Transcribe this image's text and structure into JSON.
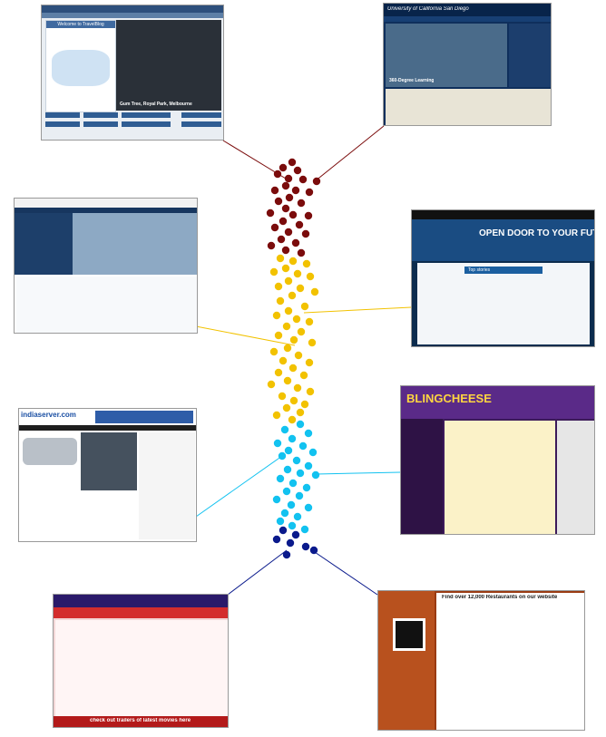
{
  "thumbnails": [
    {
      "name": "travelblog",
      "label": "Welcome to TravelBlog",
      "caption": "Gum Tree, Royal Park, Melbourne"
    },
    {
      "name": "ucsd",
      "label": "University of California San Diego",
      "hero_caption": "360-Degree Learning"
    },
    {
      "name": "queensland",
      "label": ""
    },
    {
      "name": "cambria",
      "label": "OPEN DOOR TO YOUR FUTURE",
      "top_stories": "Top stories"
    },
    {
      "name": "indiaserver",
      "label": "indiaserver.com"
    },
    {
      "name": "blingcheese",
      "label": "BLINGCHEESE"
    },
    {
      "name": "filmywap",
      "footer": "check out trailers of latest movies here"
    },
    {
      "name": "restaurants",
      "headline": "Find over 12,000 Restaurants on our website"
    }
  ],
  "clusters": [
    {
      "name": "dark-red",
      "color": "#7b0c0c"
    },
    {
      "name": "gold",
      "color": "#f2c200"
    },
    {
      "name": "cyan",
      "color": "#12c2f0"
    },
    {
      "name": "navy",
      "color": "#0a1a8c"
    }
  ]
}
